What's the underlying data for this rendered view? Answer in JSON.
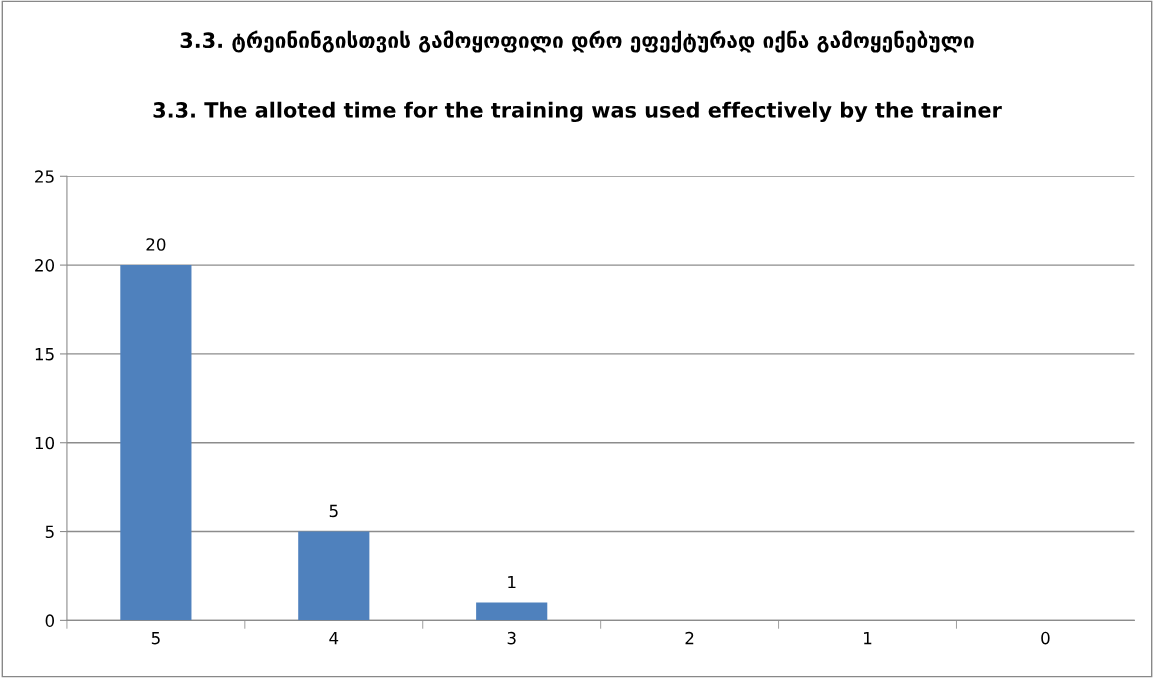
{
  "chart_data": {
    "type": "bar",
    "title": "3.3. ტრეინინგისთვის გამოყოფილი დრო ეფექტურად იქნა გამოყენებული",
    "subtitle": "3.3. The alloted time for the training was used effectively by the trainer",
    "categories": [
      "5",
      "4",
      "3",
      "2",
      "1",
      "0"
    ],
    "values": [
      20,
      5,
      1,
      0,
      0,
      0
    ],
    "value_labels": [
      "20",
      "5",
      "1",
      null,
      null,
      null
    ],
    "color": "#4f81bd",
    "ylim": [
      0,
      25
    ],
    "yticks": [
      0,
      5,
      10,
      15,
      20,
      25
    ],
    "grid": "y"
  }
}
